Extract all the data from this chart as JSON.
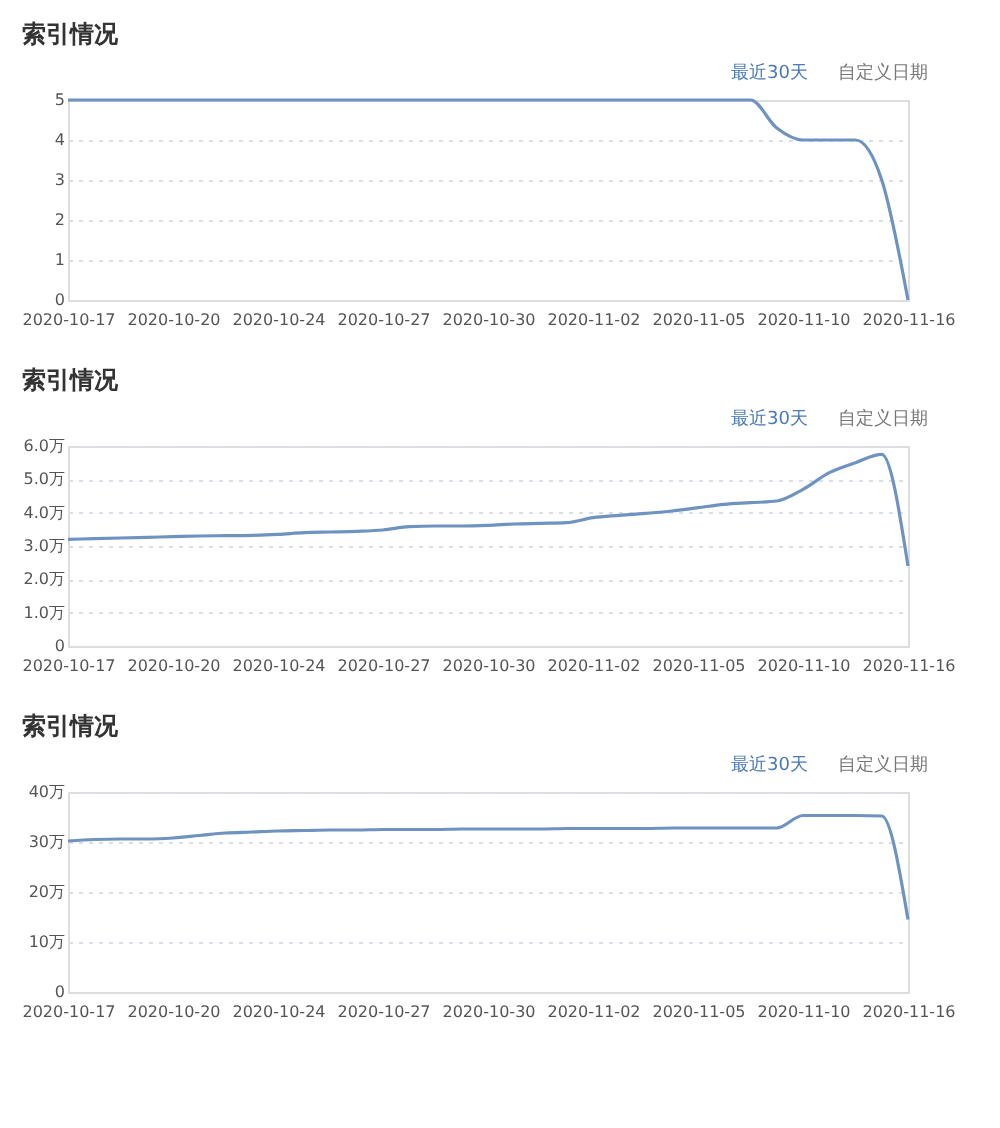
{
  "chart_data": [
    {
      "type": "line",
      "title": "索引情况",
      "annotations": [
        "最近30天",
        "自定义日期"
      ],
      "categories": [
        "2020-10-17",
        null,
        null,
        null,
        "2020-10-20",
        null,
        null,
        null,
        "2020-10-24",
        null,
        null,
        null,
        "2020-10-27",
        null,
        null,
        null,
        "2020-10-30",
        null,
        null,
        null,
        "2020-11-02",
        null,
        null,
        null,
        "2020-11-05",
        null,
        null,
        null,
        "2020-11-10",
        null,
        null,
        null,
        "2020-11-16"
      ],
      "series": [
        {
          "color": "#6f93c0",
          "values": [
            5,
            5,
            5,
            5,
            5,
            5,
            5,
            5,
            5,
            5,
            5,
            5,
            5,
            5,
            5,
            5,
            5,
            5,
            5,
            5,
            5,
            5,
            5,
            5,
            5,
            5,
            5,
            4.3,
            4,
            4,
            4,
            3,
            0
          ]
        }
      ],
      "ylim": [
        0,
        5
      ],
      "yticks": [
        0,
        1,
        2,
        3,
        4,
        5
      ],
      "grid": "y"
    },
    {
      "type": "line",
      "title": "索引情况",
      "annotations": [
        "最近30天",
        "自定义日期"
      ],
      "categories": [
        "2020-10-17",
        null,
        null,
        null,
        "2020-10-20",
        null,
        null,
        null,
        "2020-10-24",
        null,
        null,
        null,
        "2020-10-27",
        null,
        null,
        null,
        "2020-10-30",
        null,
        null,
        null,
        "2020-11-02",
        null,
        null,
        null,
        "2020-11-05",
        null,
        null,
        null,
        "2020-11-10",
        null,
        null,
        null,
        "2020-11-16"
      ],
      "series": [
        {
          "color": "#6f93c0",
          "values": [
            3.2,
            3.22,
            3.24,
            3.26,
            3.28,
            3.3,
            3.31,
            3.32,
            3.35,
            3.4,
            3.42,
            3.44,
            3.48,
            3.58,
            3.6,
            3.6,
            3.62,
            3.66,
            3.68,
            3.7,
            3.85,
            3.92,
            3.98,
            4.05,
            4.15,
            4.25,
            4.3,
            4.35,
            4.7,
            5.2,
            5.5,
            5.75,
            2.4
          ]
        }
      ],
      "ylim": [
        0,
        6
      ],
      "yticks": [
        0,
        {
          "value": 1,
          "label": "1.0万"
        },
        {
          "value": 2,
          "label": "2.0万"
        },
        {
          "value": 3,
          "label": "3.0万"
        },
        {
          "value": 4,
          "label": "4.0万"
        },
        {
          "value": 5,
          "label": "5.0万"
        },
        {
          "value": 6,
          "label": "6.0万"
        }
      ],
      "grid": "y"
    },
    {
      "type": "line",
      "title": "索引情况",
      "annotations": [
        "最近30天",
        "自定义日期"
      ],
      "categories": [
        "2020-10-17",
        null,
        null,
        null,
        "2020-10-20",
        null,
        null,
        null,
        "2020-10-24",
        null,
        null,
        null,
        "2020-10-27",
        null,
        null,
        null,
        "2020-10-30",
        null,
        null,
        null,
        "2020-11-02",
        null,
        null,
        null,
        "2020-11-05",
        null,
        null,
        null,
        "2020-11-10",
        null,
        null,
        null,
        "2020-11-16"
      ],
      "series": [
        {
          "color": "#6f93c0",
          "values": [
            30.2,
            30.5,
            30.6,
            30.6,
            30.8,
            31.3,
            31.8,
            32,
            32.2,
            32.3,
            32.4,
            32.4,
            32.5,
            32.5,
            32.5,
            32.6,
            32.6,
            32.6,
            32.6,
            32.7,
            32.7,
            32.7,
            32.7,
            32.8,
            32.8,
            32.8,
            32.8,
            32.8,
            35.3,
            35.3,
            35.3,
            35.2,
            14.5
          ]
        }
      ],
      "ylim": [
        0,
        40
      ],
      "yticks": [
        0,
        {
          "value": 10,
          "label": "10万"
        },
        {
          "value": 20,
          "label": "20万"
        },
        {
          "value": 30,
          "label": "30万"
        },
        {
          "value": 40,
          "label": "40万"
        }
      ],
      "grid": "y"
    }
  ]
}
